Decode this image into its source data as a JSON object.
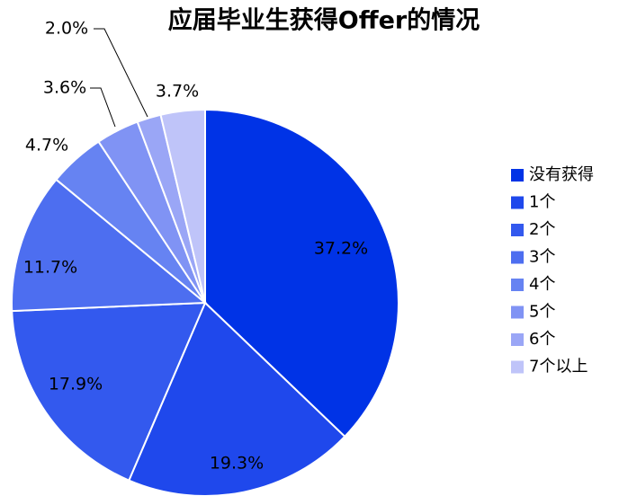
{
  "chart_data": {
    "type": "pie",
    "title": "应届毕业生获得Offer的情况",
    "categories": [
      "没有获得",
      "1个",
      "2个",
      "3个",
      "4个",
      "5个",
      "6个",
      "7个以上"
    ],
    "values": [
      37.2,
      19.3,
      17.9,
      11.7,
      4.7,
      3.6,
      2.0,
      3.7
    ],
    "value_labels": [
      "37.2%",
      "19.3%",
      "17.9%",
      "11.7%",
      "4.7%",
      "3.6%",
      "2.0%",
      "3.7%"
    ],
    "colors": [
      "#0033e6",
      "#1f48ec",
      "#3359ee",
      "#4d6ef0",
      "#6683f2",
      "#8093f4",
      "#9aa6f6",
      "#bfc4f9"
    ],
    "legend": "right"
  }
}
